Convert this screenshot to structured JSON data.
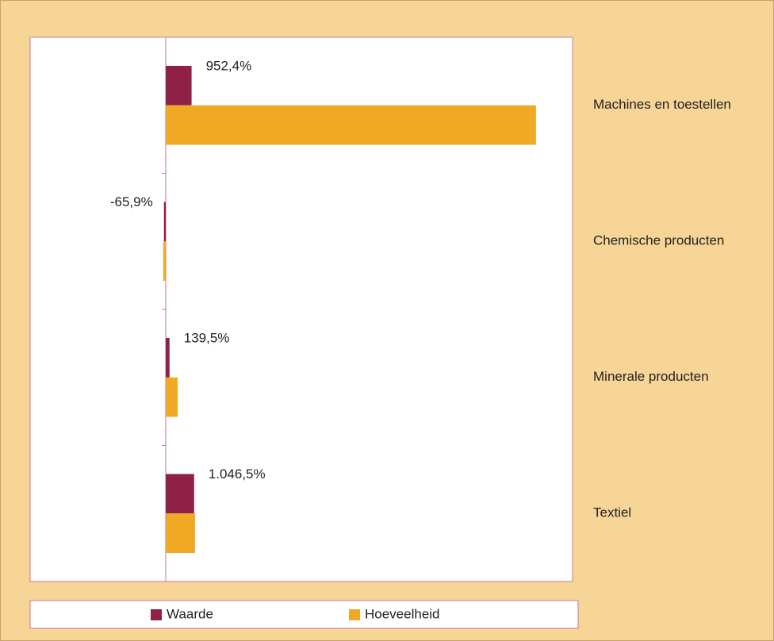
{
  "chart_data": {
    "type": "hbar",
    "categories": [
      "Machines en toestellen",
      "Chemische producten",
      "Minerale producten",
      "Textiel"
    ],
    "series": [
      {
        "name": "Waarde",
        "color": "#8e2145",
        "values": [
          952.4,
          -65.9,
          139.5,
          1046.5
        ],
        "value_labels": [
          "952,4%",
          "-65,9%",
          "139,5%",
          "1.046,5%"
        ]
      },
      {
        "name": "Hoeveelheid",
        "color": "#f0a924",
        "values": [
          13650,
          -90,
          440,
          1080
        ]
      }
    ],
    "xlim": [
      -5000,
      15000
    ],
    "legend": "bottom"
  }
}
